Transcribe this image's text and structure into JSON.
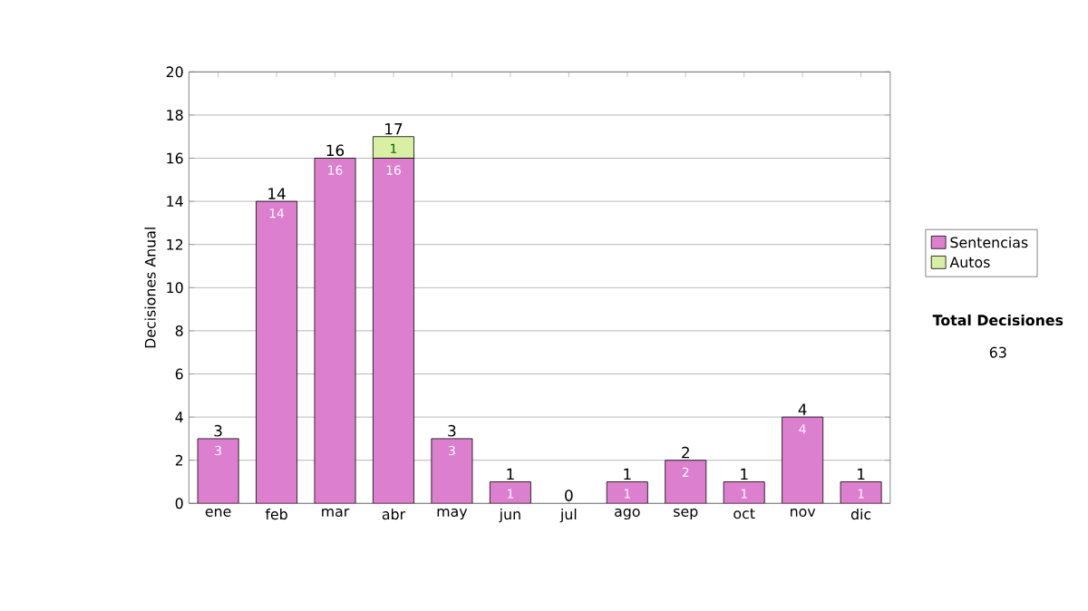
{
  "chart_data": {
    "type": "bar",
    "stacked": true,
    "ylabel": "Decisiones Anual",
    "categories": [
      "ene",
      "feb",
      "mar",
      "abr",
      "may",
      "jun",
      "jul",
      "ago",
      "sep",
      "oct",
      "nov",
      "dic"
    ],
    "series": [
      {
        "name": "Sentencias",
        "color": "#dd7fcf",
        "values": [
          3,
          14,
          16,
          16,
          3,
          1,
          0,
          1,
          2,
          1,
          4,
          1
        ],
        "value_labels": [
          "3",
          "14",
          "16",
          "16",
          "3",
          "1",
          null,
          "1",
          "2",
          "1",
          "4",
          "1"
        ]
      },
      {
        "name": "Autos",
        "color": "#d8efa4",
        "values": [
          0,
          0,
          0,
          1,
          0,
          0,
          0,
          0,
          0,
          0,
          0,
          0
        ],
        "value_labels": [
          null,
          null,
          null,
          "1",
          null,
          null,
          null,
          null,
          null,
          null,
          null,
          null
        ]
      }
    ],
    "totals": [
      "3",
      "14",
      "16",
      "17",
      "3",
      "1",
      "0",
      "1",
      "2",
      "1",
      "4",
      "1"
    ],
    "ylim": [
      0,
      20
    ],
    "yticks": [
      0,
      2,
      4,
      6,
      8,
      10,
      12,
      14,
      16,
      18,
      20
    ],
    "grid": "y",
    "legend": "right",
    "annotations": [
      "Total Decisiones",
      "63"
    ]
  }
}
